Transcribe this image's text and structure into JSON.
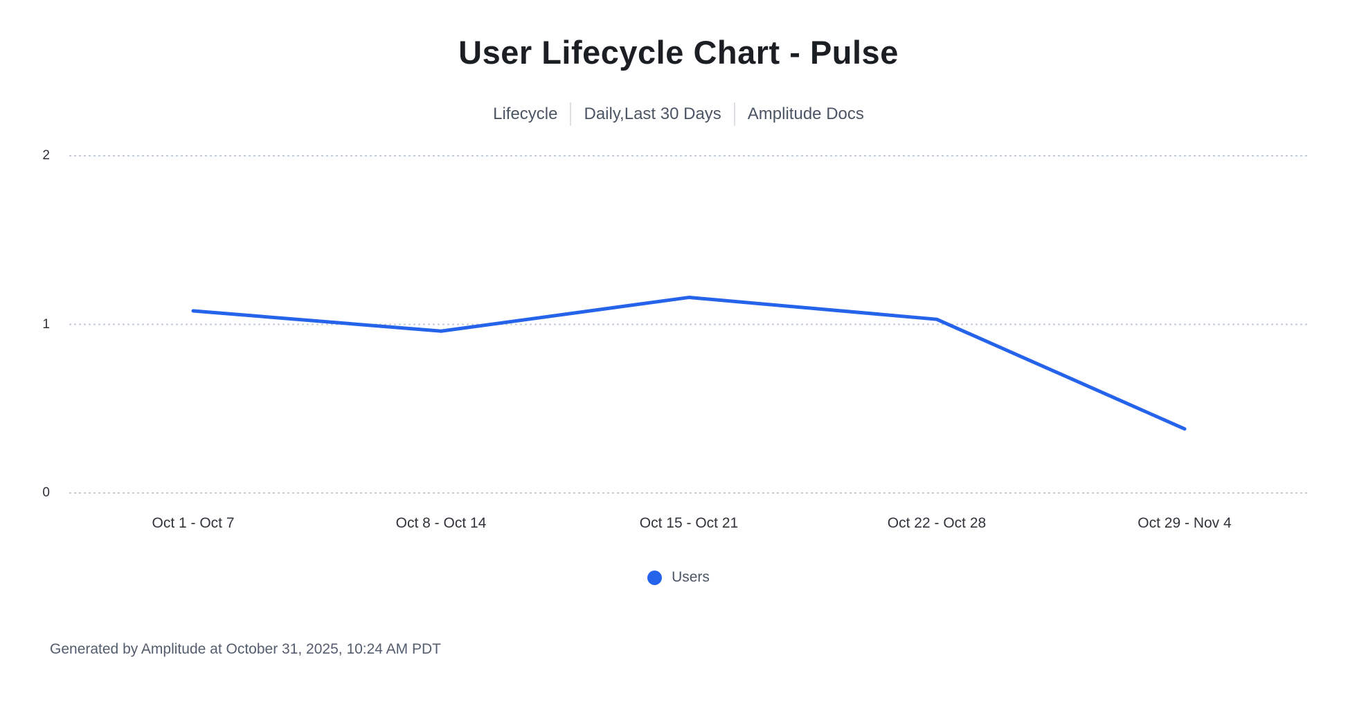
{
  "page": {
    "title": "User Lifecycle Chart - Pulse",
    "subtitle_parts": [
      "Lifecycle",
      "Daily,Last 30 Days",
      "Amplitude Docs"
    ],
    "footer": "Generated by Amplitude at October 31, 2025, 10:24 AM PDT"
  },
  "legend": {
    "label": "Users",
    "dot_color": "#2563eb"
  },
  "colors": {
    "accent_blue": "#2563eb",
    "gridline": "#c3ccd9",
    "title_text": "#1b1e23",
    "subtitle_text": "#4c5564",
    "footer_text": "#535d6d"
  },
  "chart_data": {
    "type": "line",
    "title": "User Lifecycle Chart - Pulse",
    "subtitle": "Lifecycle | Daily,Last 30 Days | Amplitude Docs",
    "categories": [
      "Oct 1 - Oct 7",
      "Oct 8 - Oct 14",
      "Oct 15 - Oct 21",
      "Oct 22 - Oct 28",
      "Oct 29 - Nov 4"
    ],
    "series": [
      {
        "name": "Users",
        "color": "#2563eb",
        "values": [
          1.08,
          0.96,
          1.16,
          1.03,
          0.38
        ]
      }
    ],
    "xlabel": "",
    "ylabel": "",
    "ylim": [
      0,
      2
    ],
    "yticks": [
      0,
      1,
      2
    ],
    "grid": "horizontal-dotted",
    "legend_position": "bottom-center"
  }
}
